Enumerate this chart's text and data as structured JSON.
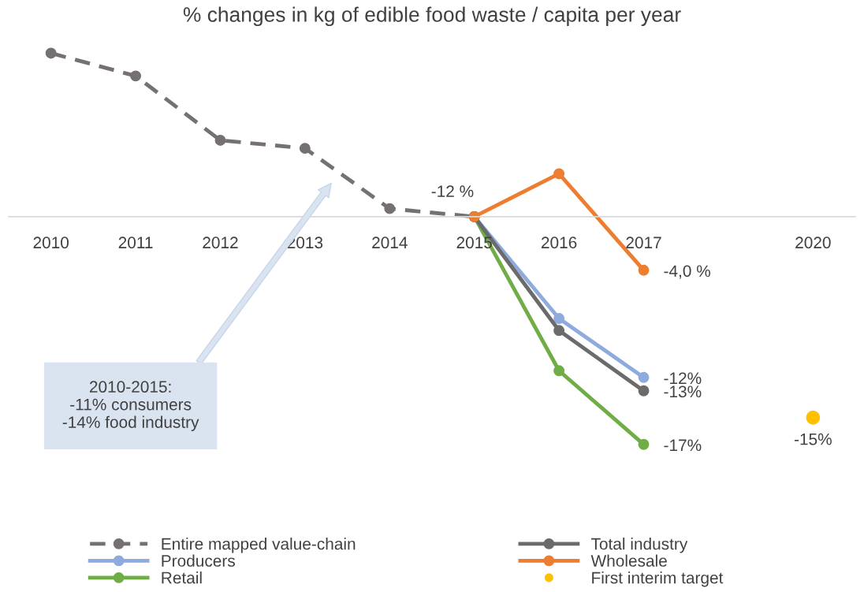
{
  "chart_data": {
    "type": "line",
    "title": "% changes in kg of edible food waste / capita per year",
    "categories": [
      "2010",
      "2011",
      "2012",
      "2013",
      "2014",
      "2015",
      "2016",
      "2017",
      null,
      "2020"
    ],
    "tick_labels": "x",
    "grid": false,
    "legend": "bottom",
    "marker": "circle",
    "series": [
      {
        "name": "Entire mapped value-chain",
        "color": "#767171",
        "line_style": "dashed",
        "values": [
          12.2,
          10.5,
          5.7,
          5.1,
          0.6,
          0,
          null,
          null,
          null,
          null
        ]
      },
      {
        "name": "Producers",
        "color": "#8faadc",
        "line_style": "solid",
        "values": [
          null,
          null,
          null,
          null,
          null,
          0,
          -7.6,
          -12,
          null,
          null
        ],
        "value_labels": [
          null,
          null,
          null,
          null,
          null,
          null,
          null,
          "-12%",
          null,
          null
        ]
      },
      {
        "name": "Retail",
        "color": "#70ad47",
        "line_style": "solid",
        "values": [
          null,
          null,
          null,
          null,
          null,
          0,
          -11.5,
          -17,
          null,
          null
        ],
        "value_labels": [
          null,
          null,
          null,
          null,
          null,
          null,
          null,
          "-17%",
          null,
          null
        ]
      },
      {
        "name": "Total industry",
        "color": "#6b6b6b",
        "line_style": "solid",
        "values": [
          null,
          null,
          null,
          null,
          null,
          0,
          -8.5,
          -13,
          null,
          null
        ],
        "value_labels": [
          null,
          null,
          null,
          null,
          null,
          null,
          null,
          "-13%",
          null,
          null
        ]
      },
      {
        "name": "Wholesale",
        "color": "#ed7d31",
        "line_style": "solid",
        "values": [
          null,
          null,
          null,
          null,
          null,
          0,
          3.2,
          -4.0,
          null,
          null
        ],
        "value_labels": [
          null,
          null,
          null,
          null,
          null,
          null,
          null,
          "-4,0 %",
          null,
          null
        ]
      },
      {
        "name": "First interim target",
        "type": "scatter",
        "color": "#ffc000",
        "values": [
          null,
          null,
          null,
          null,
          null,
          null,
          null,
          null,
          null,
          -15
        ],
        "value_labels": [
          null,
          null,
          null,
          null,
          null,
          null,
          null,
          null,
          null,
          "-15%"
        ]
      }
    ],
    "annotations": [
      {
        "text": "-12 %",
        "x": "2015",
        "y": 0
      },
      "2010-2015:\n-11% consumers\n-14% food industry"
    ]
  }
}
